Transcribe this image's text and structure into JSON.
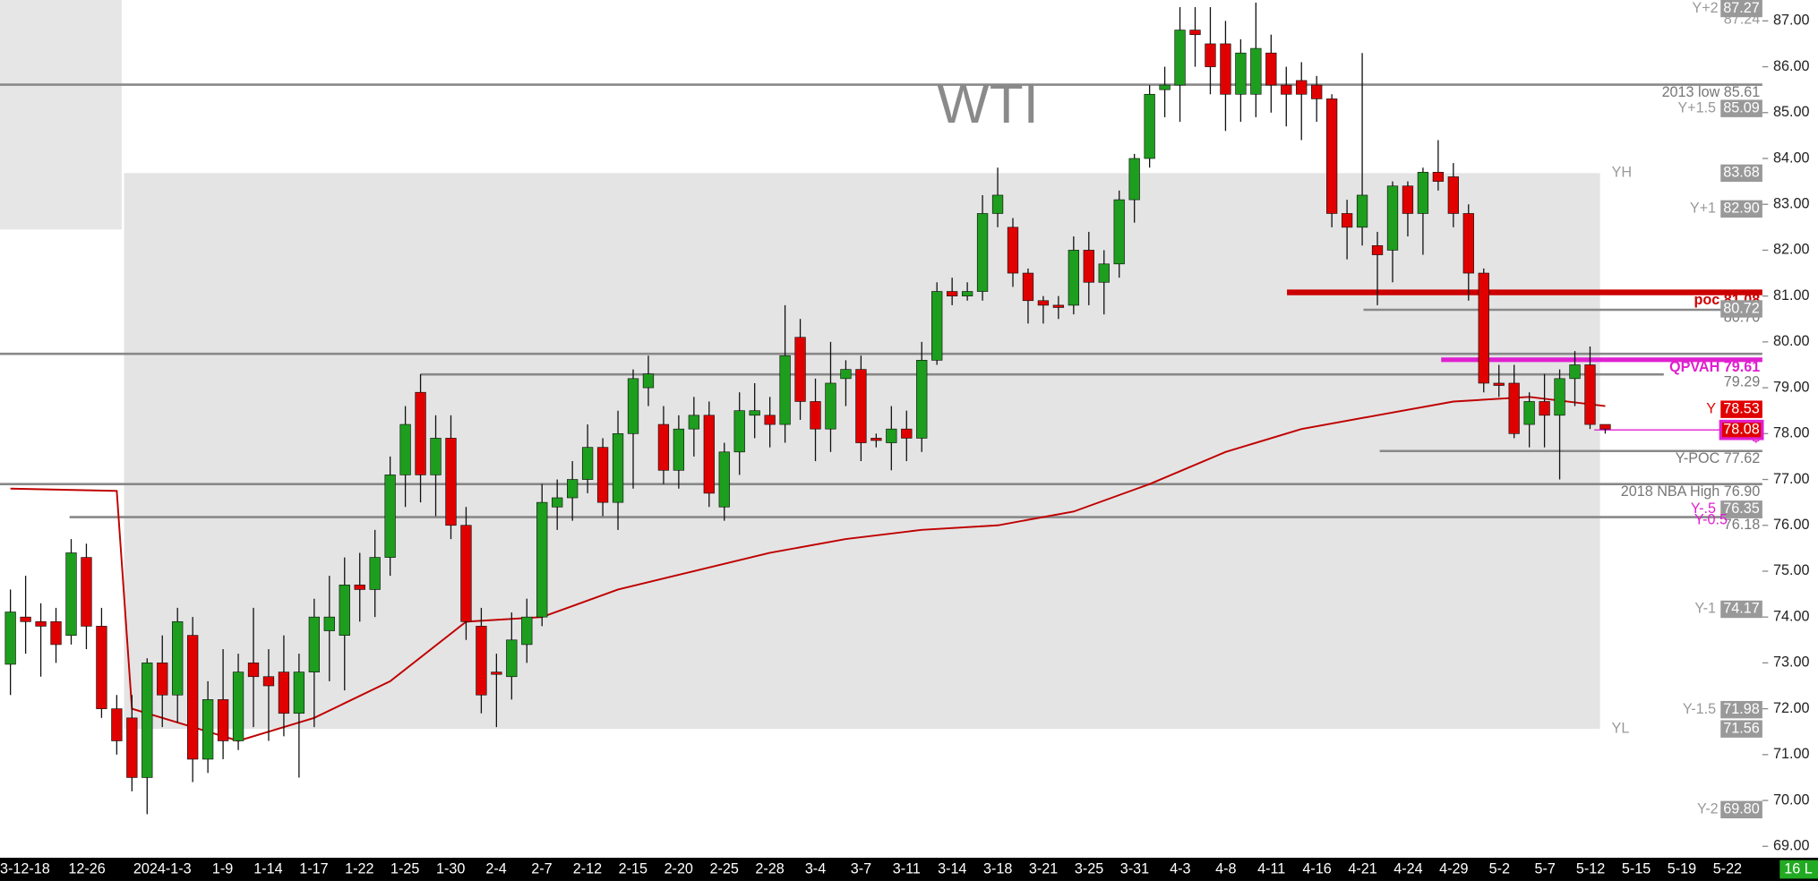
{
  "chart_data": {
    "type": "candlestick",
    "title": "WTI",
    "ylim": [
      68.75,
      87.455
    ],
    "yticks": [
      {
        "value": 87,
        "label": "87.00"
      },
      {
        "value": 86,
        "label": "86.00"
      },
      {
        "value": 85,
        "label": "85.00"
      },
      {
        "value": 84,
        "label": "84.00"
      },
      {
        "value": 83,
        "label": "83.00"
      },
      {
        "value": 82,
        "label": "82.00"
      },
      {
        "value": 81,
        "label": "81.00"
      },
      {
        "value": 80,
        "label": "80.00"
      },
      {
        "value": 79,
        "label": "79.00"
      },
      {
        "value": 78,
        "label": "78.00"
      },
      {
        "value": 77,
        "label": "77.00"
      },
      {
        "value": 76,
        "label": "76.00"
      },
      {
        "value": 75,
        "label": "75.00"
      },
      {
        "value": 74,
        "label": "74.00"
      },
      {
        "value": 73,
        "label": "73.00"
      },
      {
        "value": 72,
        "label": "72.00"
      },
      {
        "value": 71,
        "label": "71.00"
      },
      {
        "value": 70,
        "label": "70.00"
      },
      {
        "value": 69,
        "label": "69.00"
      }
    ],
    "date_labels": [
      "3-12-18",
      "12-26",
      "2024-1-3",
      "1-9",
      "1-14",
      "1-17",
      "1-22",
      "1-25",
      "1-30",
      "2-4",
      "2-7",
      "2-12",
      "2-15",
      "2-20",
      "2-25",
      "2-28",
      "3-4",
      "3-7",
      "3-11",
      "3-14",
      "3-18",
      "3-21",
      "3-25",
      "3-31",
      "4-3",
      "4-8",
      "4-11",
      "4-16",
      "4-21",
      "4-24",
      "4-29",
      "5-2",
      "5-7",
      "5-12",
      "5-15",
      "5-19",
      "5-22"
    ],
    "up_color": "#1e9e1e",
    "down_color": "#e00000",
    "ohlc": [
      [
        72.97,
        74.6,
        72.3,
        74.11
      ],
      [
        74.0,
        74.9,
        73.2,
        73.9
      ],
      [
        73.9,
        74.3,
        72.7,
        73.8
      ],
      [
        73.9,
        74.2,
        73.0,
        73.4
      ],
      [
        73.6,
        75.7,
        73.4,
        75.4
      ],
      [
        75.3,
        75.6,
        73.3,
        73.8
      ],
      [
        73.8,
        74.2,
        71.8,
        72.0
      ],
      [
        72.0,
        72.3,
        71.0,
        71.3
      ],
      [
        71.8,
        72.3,
        70.2,
        70.5
      ],
      [
        70.5,
        73.1,
        69.7,
        73.0
      ],
      [
        73.0,
        73.6,
        71.6,
        72.3
      ],
      [
        72.3,
        74.2,
        71.7,
        73.9
      ],
      [
        73.6,
        74.0,
        70.4,
        70.9
      ],
      [
        70.9,
        72.6,
        70.6,
        72.2
      ],
      [
        72.2,
        73.3,
        70.9,
        71.3
      ],
      [
        71.3,
        73.2,
        71.1,
        72.8
      ],
      [
        73.0,
        74.2,
        71.6,
        72.7
      ],
      [
        72.7,
        73.3,
        71.3,
        72.5
      ],
      [
        72.8,
        73.6,
        71.4,
        71.9
      ],
      [
        71.9,
        73.2,
        70.5,
        72.8
      ],
      [
        72.8,
        74.4,
        71.6,
        74.0
      ],
      [
        73.7,
        74.9,
        72.6,
        74.0
      ],
      [
        73.6,
        75.3,
        72.4,
        74.7
      ],
      [
        74.7,
        75.4,
        73.9,
        74.6
      ],
      [
        74.6,
        75.9,
        74.0,
        75.3
      ],
      [
        75.3,
        77.5,
        74.9,
        77.1
      ],
      [
        77.1,
        78.6,
        76.4,
        78.2
      ],
      [
        78.9,
        79.3,
        76.5,
        77.1
      ],
      [
        77.1,
        78.4,
        76.2,
        77.9
      ],
      [
        77.9,
        78.4,
        75.7,
        76.0
      ],
      [
        76.0,
        76.4,
        73.5,
        73.9
      ],
      [
        73.8,
        74.2,
        71.9,
        72.3
      ],
      [
        72.8,
        73.2,
        71.6,
        72.75
      ],
      [
        72.7,
        74.1,
        72.2,
        73.5
      ],
      [
        73.4,
        74.4,
        73.0,
        74.0
      ],
      [
        74.0,
        76.9,
        73.8,
        76.5
      ],
      [
        76.4,
        77.0,
        75.9,
        76.6
      ],
      [
        76.6,
        77.4,
        76.1,
        77.0
      ],
      [
        77.0,
        78.2,
        76.7,
        77.7
      ],
      [
        77.7,
        77.9,
        76.2,
        76.5
      ],
      [
        76.5,
        78.5,
        75.9,
        78.0
      ],
      [
        78.0,
        79.4,
        76.8,
        79.2
      ],
      [
        79.0,
        79.7,
        78.6,
        79.3
      ],
      [
        78.2,
        78.6,
        76.9,
        77.2
      ],
      [
        77.2,
        78.4,
        76.8,
        78.1
      ],
      [
        78.1,
        78.8,
        77.5,
        78.4
      ],
      [
        78.4,
        78.7,
        76.4,
        76.7
      ],
      [
        76.4,
        77.8,
        76.1,
        77.6
      ],
      [
        77.6,
        78.9,
        77.1,
        78.5
      ],
      [
        78.4,
        79.1,
        77.9,
        78.5
      ],
      [
        78.4,
        78.8,
        77.7,
        78.2
      ],
      [
        78.2,
        80.8,
        77.8,
        79.7
      ],
      [
        80.1,
        80.5,
        78.3,
        78.7
      ],
      [
        78.7,
        79.2,
        77.4,
        78.1
      ],
      [
        78.1,
        80.0,
        77.6,
        79.1
      ],
      [
        79.2,
        79.6,
        78.6,
        79.4
      ],
      [
        79.4,
        79.7,
        77.4,
        77.8
      ],
      [
        77.9,
        78.0,
        77.7,
        77.85
      ],
      [
        77.8,
        78.6,
        77.2,
        78.1
      ],
      [
        78.1,
        78.5,
        77.4,
        77.9
      ],
      [
        77.9,
        80.0,
        77.6,
        79.6
      ],
      [
        79.6,
        81.3,
        79.5,
        81.1
      ],
      [
        81.1,
        81.4,
        80.8,
        81.0
      ],
      [
        81.0,
        81.3,
        80.9,
        81.1
      ],
      [
        81.1,
        83.2,
        80.9,
        82.8
      ],
      [
        82.8,
        83.8,
        82.5,
        83.2
      ],
      [
        82.5,
        82.7,
        81.2,
        81.5
      ],
      [
        81.5,
        81.6,
        80.4,
        80.9
      ],
      [
        80.9,
        81.0,
        80.4,
        80.8
      ],
      [
        80.8,
        81.0,
        80.5,
        80.75
      ],
      [
        80.8,
        82.3,
        80.6,
        82.0
      ],
      [
        82.0,
        82.4,
        80.8,
        81.3
      ],
      [
        81.3,
        82.0,
        80.6,
        81.7
      ],
      [
        81.7,
        83.3,
        81.4,
        83.1
      ],
      [
        83.1,
        84.1,
        82.6,
        84.0
      ],
      [
        84.0,
        85.6,
        83.8,
        85.4
      ],
      [
        85.5,
        86.0,
        84.9,
        85.6
      ],
      [
        85.6,
        87.3,
        84.8,
        86.8
      ],
      [
        86.8,
        87.3,
        86.0,
        86.7
      ],
      [
        86.5,
        87.3,
        85.4,
        86.0
      ],
      [
        86.5,
        87.0,
        84.6,
        85.4
      ],
      [
        85.4,
        86.6,
        84.8,
        86.3
      ],
      [
        85.4,
        87.4,
        84.9,
        86.4
      ],
      [
        86.3,
        86.7,
        85.0,
        85.6
      ],
      [
        85.6,
        86.0,
        84.7,
        85.4
      ],
      [
        85.7,
        86.1,
        84.4,
        85.4
      ],
      [
        85.6,
        85.8,
        84.8,
        85.3
      ],
      [
        85.3,
        85.4,
        82.5,
        82.8
      ],
      [
        82.8,
        83.1,
        81.8,
        82.5
      ],
      [
        82.5,
        86.3,
        82.1,
        83.2
      ],
      [
        82.1,
        82.4,
        80.8,
        81.9
      ],
      [
        82.0,
        83.5,
        81.3,
        83.4
      ],
      [
        83.4,
        83.5,
        82.3,
        82.8
      ],
      [
        82.8,
        83.8,
        81.9,
        83.7
      ],
      [
        83.7,
        84.4,
        83.3,
        83.5
      ],
      [
        83.6,
        83.9,
        82.5,
        82.8
      ],
      [
        82.8,
        83.0,
        80.9,
        81.5
      ],
      [
        81.5,
        81.6,
        78.9,
        79.1
      ],
      [
        79.1,
        79.5,
        78.8,
        79.05
      ],
      [
        79.1,
        79.5,
        77.9,
        78.0
      ],
      [
        78.2,
        78.9,
        77.7,
        78.7
      ],
      [
        78.7,
        79.3,
        77.7,
        78.4
      ],
      [
        78.4,
        79.4,
        77.0,
        79.2
      ],
      [
        79.2,
        79.8,
        78.6,
        79.5
      ],
      [
        79.5,
        79.9,
        78.1,
        78.2
      ],
      [
        78.2,
        78.2,
        78.0,
        78.1
      ]
    ],
    "ma": {
      "color": "#c00000",
      "x": [
        0,
        7,
        8,
        10,
        15,
        20,
        25,
        30,
        35,
        40,
        45,
        50,
        55,
        60,
        65,
        70,
        75,
        80,
        85,
        90,
        95,
        100,
        105
      ],
      "values": [
        76.8,
        76.75,
        72.0,
        71.8,
        71.3,
        71.8,
        72.6,
        73.9,
        74.0,
        74.6,
        75.0,
        75.4,
        75.7,
        75.9,
        76.0,
        76.3,
        76.9,
        77.6,
        78.1,
        78.4,
        78.7,
        78.8,
        78.6
      ]
    },
    "levels": [
      {
        "value": 85.61,
        "label": "2013 low 85.61",
        "color": "#888888"
      },
      {
        "value": 79.74,
        "color": "#888888"
      },
      {
        "value": 76.9,
        "label": "2018 NBA High 76.90",
        "color": "#888888"
      },
      {
        "value": 76.18,
        "label": "76.18",
        "color": "#888888"
      },
      {
        "value": 79.29,
        "label": "79.29",
        "color": "#888888"
      },
      {
        "value": 80.7,
        "label": "80.70",
        "color": "#888888"
      },
      {
        "value": 81.08,
        "label": "poc 81.08",
        "color": "#cc0000"
      },
      {
        "value": 79.61,
        "label": "QPVAH 79.61",
        "color": "#e020d0"
      },
      {
        "value": 77.62,
        "label": "Y-POC 77.62",
        "color": "#888888"
      },
      {
        "value": 78.08,
        "label": "$",
        "color": "#e020d0"
      }
    ],
    "price_boxes": [
      {
        "value": 87.27,
        "label": "87.27",
        "tag": "Y+2",
        "color": "#999999"
      },
      {
        "value": 85.09,
        "label": "85.09",
        "tag": "Y+1.5",
        "color": "#999999"
      },
      {
        "value": 83.68,
        "label": "83.68",
        "tag": "YH",
        "color": "#999999"
      },
      {
        "value": 82.9,
        "label": "82.90",
        "tag": "Y+1",
        "color": "#999999"
      },
      {
        "value": 80.72,
        "label": "80.72",
        "color": "#999999"
      },
      {
        "value": 78.53,
        "label": "78.53",
        "tag": "Y",
        "color": "#e00000"
      },
      {
        "value": 78.08,
        "label": "78.08",
        "color": "#e00000"
      },
      {
        "value": 76.35,
        "label": "76.35",
        "tag": "Y-.5",
        "color": "#999999"
      },
      {
        "value": 74.17,
        "label": "74.17",
        "tag": "Y-1",
        "color": "#999999"
      },
      {
        "value": 71.98,
        "label": "71.98",
        "tag": "Y-1.5",
        "color": "#999999"
      },
      {
        "value": 71.56,
        "label": "71.56",
        "tag": "YL",
        "color": "#999999"
      },
      {
        "value": 69.8,
        "label": "69.80",
        "tag": "Y-2",
        "color": "#999999"
      }
    ],
    "notes": [
      "87.24",
      "Y-0.5"
    ],
    "status": "16 L"
  }
}
